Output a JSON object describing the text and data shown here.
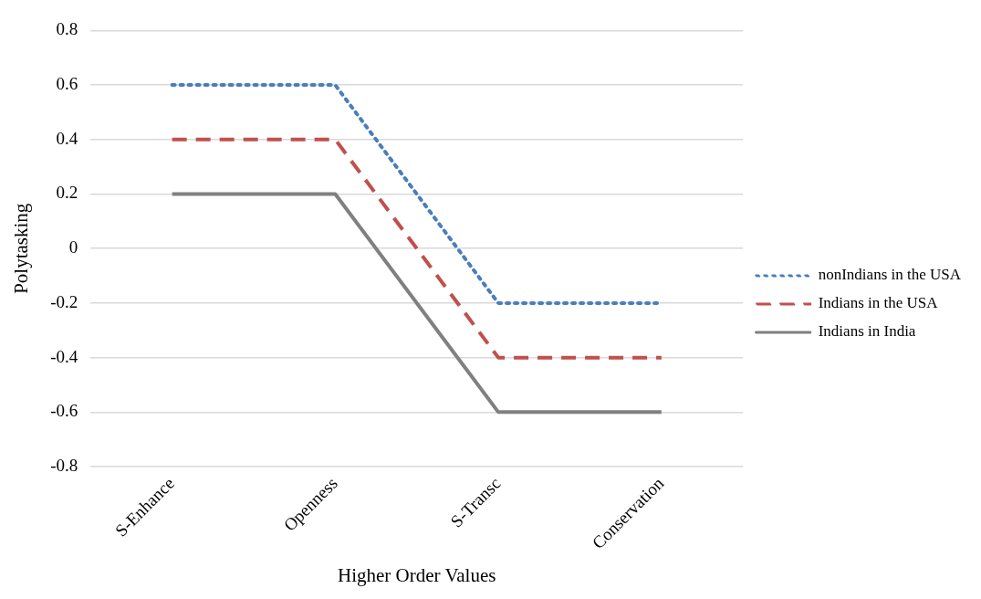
{
  "chart_data": {
    "type": "line",
    "xlabel": "Higher Order Values",
    "ylabel": "Polytasking",
    "categories": [
      "S-Enhance",
      "Openness",
      "S-Transc",
      "Conservation"
    ],
    "series": [
      {
        "name": "nonIndians in the USA",
        "color": "#4a7ebb",
        "line_style": "dotted",
        "values": [
          0.6,
          0.6,
          -0.2,
          -0.2
        ]
      },
      {
        "name": "Indians in the USA",
        "color": "#c0504d",
        "line_style": "dashed",
        "values": [
          0.4,
          0.4,
          -0.4,
          -0.4
        ]
      },
      {
        "name": "Indians in India",
        "color": "#808080",
        "line_style": "solid",
        "values": [
          0.2,
          0.2,
          -0.6,
          -0.6
        ]
      }
    ],
    "ylim": [
      -0.8,
      0.8
    ],
    "yticks": [
      -0.8,
      -0.6,
      -0.4,
      -0.2,
      0,
      0.2,
      0.4,
      0.6,
      0.8
    ],
    "grid": "y",
    "legend": "right",
    "marker": "none"
  }
}
